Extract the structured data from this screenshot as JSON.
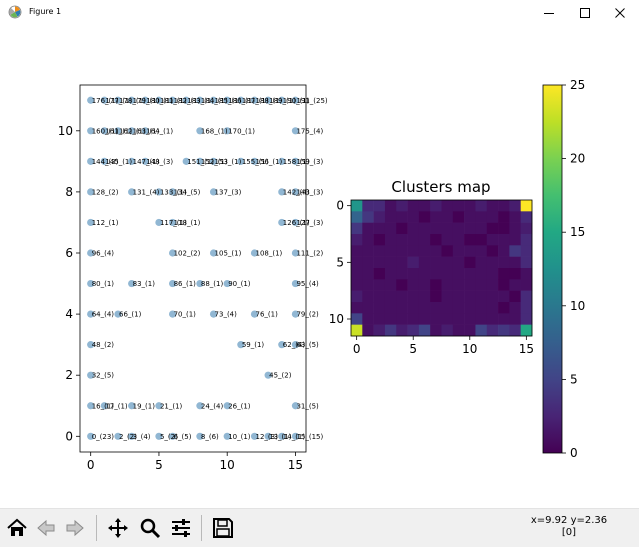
{
  "window": {
    "title": "Figure 1"
  },
  "scatter_labels": [
    {
      "t": "176_(1)",
      "x": 0,
      "y": 11
    },
    {
      "t": "177_(1)",
      "x": 1,
      "y": 11
    },
    {
      "t": "178_(1)",
      "x": 2,
      "y": 11
    },
    {
      "t": "179_(1)",
      "x": 3,
      "y": 11
    },
    {
      "t": "180_(1)",
      "x": 4,
      "y": 11
    },
    {
      "t": "181_(1)",
      "x": 5,
      "y": 11
    },
    {
      "t": "182_(1)",
      "x": 6,
      "y": 11
    },
    {
      "t": "183_(1)",
      "x": 7,
      "y": 11
    },
    {
      "t": "184_(1)",
      "x": 8,
      "y": 11
    },
    {
      "t": "185_(1)",
      "x": 9,
      "y": 11
    },
    {
      "t": "186_(1)",
      "x": 10,
      "y": 11
    },
    {
      "t": "187_(1)",
      "x": 11,
      "y": 11
    },
    {
      "t": "188_(1)",
      "x": 12,
      "y": 11
    },
    {
      "t": "189_(1)",
      "x": 13,
      "y": 11
    },
    {
      "t": "190_(1)",
      "x": 14,
      "y": 11
    },
    {
      "t": "191_(25)",
      "x": 15,
      "y": 11
    },
    {
      "t": "160_(1)",
      "x": 0,
      "y": 10
    },
    {
      "t": "161_(1)",
      "x": 1,
      "y": 10
    },
    {
      "t": "162_(1)",
      "x": 2,
      "y": 10
    },
    {
      "t": "163_(1)",
      "x": 3,
      "y": 10
    },
    {
      "t": "164_(1)",
      "x": 4,
      "y": 10
    },
    {
      "t": "168_(1)",
      "x": 8,
      "y": 10
    },
    {
      "t": "170_(1)",
      "x": 10,
      "y": 10
    },
    {
      "t": "175_(4)",
      "x": 15,
      "y": 10
    },
    {
      "t": "144_(3)",
      "x": 0,
      "y": 9
    },
    {
      "t": "145_(1)",
      "x": 1,
      "y": 9
    },
    {
      "t": "147_(1)",
      "x": 3,
      "y": 9
    },
    {
      "t": "148_(3)",
      "x": 4,
      "y": 9
    },
    {
      "t": "151_(1)",
      "x": 7,
      "y": 9
    },
    {
      "t": "152_(1)",
      "x": 8,
      "y": 9
    },
    {
      "t": "153_(1)",
      "x": 9,
      "y": 9
    },
    {
      "t": "155_(1)",
      "x": 11,
      "y": 9
    },
    {
      "t": "156_(1)",
      "x": 12,
      "y": 9
    },
    {
      "t": "158_(1)",
      "x": 14,
      "y": 9
    },
    {
      "t": "159_(3)",
      "x": 15,
      "y": 9
    },
    {
      "t": "128_(2)",
      "x": 0,
      "y": 8
    },
    {
      "t": "131_(4)",
      "x": 3,
      "y": 8
    },
    {
      "t": "133_(1)",
      "x": 5,
      "y": 8
    },
    {
      "t": "134_(5)",
      "x": 6,
      "y": 8
    },
    {
      "t": "137_(3)",
      "x": 9,
      "y": 8
    },
    {
      "t": "142_(4)",
      "x": 14,
      "y": 8
    },
    {
      "t": "143_(3)",
      "x": 15,
      "y": 8
    },
    {
      "t": "112_(1)",
      "x": 0,
      "y": 7
    },
    {
      "t": "117_(1)",
      "x": 5,
      "y": 7
    },
    {
      "t": "118_(1)",
      "x": 6,
      "y": 7
    },
    {
      "t": "126_(1)",
      "x": 14,
      "y": 7
    },
    {
      "t": "127_(3)",
      "x": 15,
      "y": 7
    },
    {
      "t": "96_(4)",
      "x": 0,
      "y": 6
    },
    {
      "t": "102_(2)",
      "x": 6,
      "y": 6
    },
    {
      "t": "105_(1)",
      "x": 9,
      "y": 6
    },
    {
      "t": "108_(1)",
      "x": 12,
      "y": 6
    },
    {
      "t": "111_(2)",
      "x": 15,
      "y": 6
    },
    {
      "t": "80_(1)",
      "x": 0,
      "y": 5
    },
    {
      "t": "83_(1)",
      "x": 3,
      "y": 5
    },
    {
      "t": "86_(1)",
      "x": 6,
      "y": 5
    },
    {
      "t": "88_(1)",
      "x": 8,
      "y": 5
    },
    {
      "t": "90_(1)",
      "x": 10,
      "y": 5
    },
    {
      "t": "95_(4)",
      "x": 15,
      "y": 5
    },
    {
      "t": "64_(4)",
      "x": 0,
      "y": 4
    },
    {
      "t": "66_(1)",
      "x": 2,
      "y": 4
    },
    {
      "t": "70_(1)",
      "x": 6,
      "y": 4
    },
    {
      "t": "73_(4)",
      "x": 9,
      "y": 4
    },
    {
      "t": "76_(1)",
      "x": 12,
      "y": 4
    },
    {
      "t": "79_(2)",
      "x": 15,
      "y": 4
    },
    {
      "t": "48_(2)",
      "x": 0,
      "y": 3
    },
    {
      "t": "59_(1)",
      "x": 11,
      "y": 3
    },
    {
      "t": "62_(4)",
      "x": 14,
      "y": 3
    },
    {
      "t": "63_(5)",
      "x": 15,
      "y": 3
    },
    {
      "t": "32_(5)",
      "x": 0,
      "y": 2
    },
    {
      "t": "45_(2)",
      "x": 13,
      "y": 2
    },
    {
      "t": "16_(1)",
      "x": 0,
      "y": 1
    },
    {
      "t": "17_(1)",
      "x": 1,
      "y": 1
    },
    {
      "t": "19_(1)",
      "x": 3,
      "y": 1
    },
    {
      "t": "21_(1)",
      "x": 5,
      "y": 1
    },
    {
      "t": "24_(4)",
      "x": 8,
      "y": 1
    },
    {
      "t": "26_(1)",
      "x": 10,
      "y": 1
    },
    {
      "t": "31_(5)",
      "x": 15,
      "y": 1
    },
    {
      "t": "0_(23)",
      "x": 0,
      "y": 0
    },
    {
      "t": "2_(2)",
      "x": 2,
      "y": 0
    },
    {
      "t": "3_(4)",
      "x": 3,
      "y": 0
    },
    {
      "t": "5_(2)",
      "x": 5,
      "y": 0
    },
    {
      "t": "6_(5)",
      "x": 6,
      "y": 0
    },
    {
      "t": "8_(6)",
      "x": 8,
      "y": 0
    },
    {
      "t": "10_(1)",
      "x": 10,
      "y": 0
    },
    {
      "t": "12_(3)",
      "x": 12,
      "y": 0
    },
    {
      "t": "13_(1)",
      "x": 13,
      "y": 0
    },
    {
      "t": "14_(1)",
      "x": 14,
      "y": 0
    },
    {
      "t": "15_(15)",
      "x": 15,
      "y": 0
    }
  ],
  "chart_data": [
    {
      "type": "scatter",
      "title": "",
      "xlabel": "",
      "ylabel": "",
      "xlim": [
        -1,
        16
      ],
      "ylim": [
        -0.5,
        11.5
      ],
      "xticks": [
        "0",
        "5",
        "10",
        "15"
      ],
      "yticks": [
        "0",
        "2",
        "4",
        "6",
        "8",
        "10"
      ],
      "point_color": "#7eaacb"
    },
    {
      "type": "heatmap",
      "title": "Clusters map",
      "rows": 12,
      "cols": 16,
      "xticks": [
        "0",
        "5",
        "10",
        "15"
      ],
      "yticks": [
        "0",
        "5",
        "10"
      ],
      "colorbar": {
        "min": 0,
        "max": 25,
        "ticks": [
          "0",
          "5",
          "10",
          "15",
          "20",
          "25"
        ]
      },
      "values": [
        [
          13,
          3,
          3,
          1,
          2,
          1,
          1,
          2,
          1,
          1,
          1,
          2,
          1,
          1,
          2,
          25
        ],
        [
          8,
          4,
          2,
          1,
          1,
          1,
          0,
          1,
          1,
          0,
          1,
          1,
          1,
          0,
          1,
          3
        ],
        [
          4,
          1,
          1,
          1,
          0,
          1,
          1,
          1,
          1,
          1,
          1,
          1,
          0,
          0,
          1,
          2
        ],
        [
          2,
          1,
          0,
          1,
          1,
          1,
          1,
          0,
          1,
          1,
          0,
          0,
          1,
          1,
          1,
          3
        ],
        [
          1,
          1,
          1,
          1,
          1,
          1,
          1,
          1,
          0,
          1,
          1,
          1,
          0,
          1,
          4,
          3
        ],
        [
          1,
          1,
          1,
          1,
          1,
          2,
          1,
          1,
          1,
          1,
          0,
          1,
          1,
          1,
          1,
          3
        ],
        [
          1,
          1,
          0,
          1,
          1,
          1,
          1,
          1,
          1,
          1,
          1,
          1,
          1,
          0,
          0,
          1
        ],
        [
          1,
          1,
          1,
          1,
          0,
          1,
          1,
          0,
          1,
          1,
          1,
          1,
          1,
          0,
          1,
          1
        ],
        [
          2,
          1,
          1,
          1,
          1,
          1,
          1,
          0,
          1,
          1,
          1,
          1,
          1,
          1,
          0,
          3
        ],
        [
          1,
          1,
          1,
          1,
          1,
          1,
          1,
          1,
          1,
          1,
          1,
          1,
          1,
          0,
          1,
          3
        ],
        [
          5,
          1,
          1,
          1,
          1,
          1,
          1,
          1,
          1,
          1,
          1,
          1,
          1,
          1,
          1,
          3
        ],
        [
          23,
          1,
          2,
          4,
          2,
          3,
          5,
          1,
          2,
          1,
          1,
          5,
          3,
          4,
          3,
          15
        ]
      ]
    }
  ],
  "toolbar": {
    "coords_line1": "x=9.92 y=2.36",
    "coords_line2": "[0]"
  }
}
